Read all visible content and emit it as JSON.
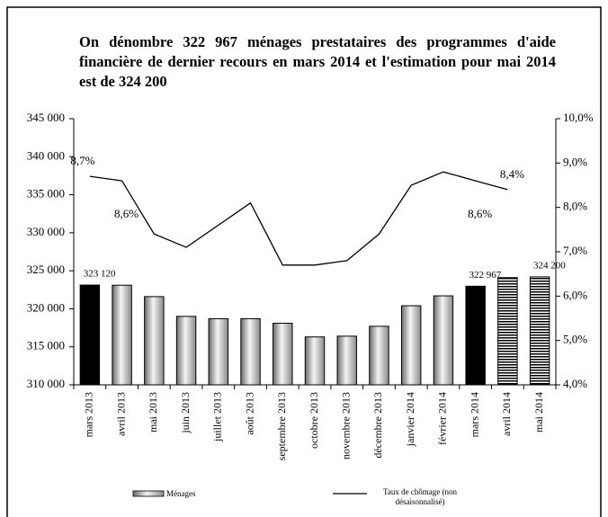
{
  "chart_data": {
    "type": "bar_line",
    "title": "On dénombre 322 967 ménages prestataires des programmes d'aide financière de dernier recours en mars 2014 et l'estimation pour mai 2014 est de 324 200",
    "categories": [
      "mars 2013",
      "avril 2013",
      "mai 2013",
      "juin 2013",
      "juillet 2013",
      "août 2013",
      "septembre 2013",
      "octobre 2013",
      "novembre 2013",
      "décembre 2013",
      "janvier 2014",
      "février 2014",
      "mars 2014",
      "avril 2014",
      "mai 2014"
    ],
    "series": [
      {
        "name": "Ménages",
        "type": "bar",
        "color": "#000000",
        "bar_styles": [
          "solid",
          "gradient",
          "gradient",
          "gradient",
          "gradient",
          "gradient",
          "gradient",
          "gradient",
          "gradient",
          "gradient",
          "gradient",
          "gradient",
          "solid",
          "striped",
          "striped"
        ],
        "values": [
          323120,
          323100,
          321600,
          319000,
          318700,
          318700,
          318100,
          316300,
          316400,
          317700,
          320400,
          321700,
          322967,
          324100,
          324200
        ],
        "value_labels": [
          "323 120",
          null,
          null,
          null,
          null,
          null,
          null,
          null,
          null,
          null,
          null,
          null,
          "322 967",
          null,
          "324 200"
        ]
      },
      {
        "name": "Taux de chômage (non désaisonnalisé)",
        "type": "line",
        "axis": "y2",
        "color": "#000000",
        "values": [
          8.7,
          8.6,
          7.4,
          7.1,
          7.6,
          8.1,
          6.7,
          6.7,
          6.8,
          7.4,
          8.5,
          8.8,
          8.6,
          8.4,
          null
        ],
        "value_labels": [
          "8,7%",
          "8,6%",
          null,
          null,
          null,
          null,
          null,
          null,
          null,
          null,
          null,
          null,
          "8,6%",
          "8,4%",
          null
        ]
      }
    ],
    "ylim": [
      310000,
      345000
    ],
    "yticks": [
      {
        "value": 310000,
        "label": "310 000"
      },
      {
        "value": 315000,
        "label": "315 000"
      },
      {
        "value": 320000,
        "label": "320 000"
      },
      {
        "value": 325000,
        "label": "325 000"
      },
      {
        "value": 330000,
        "label": "330 000"
      },
      {
        "value": 335000,
        "label": "335 000"
      },
      {
        "value": 340000,
        "label": "340 000"
      },
      {
        "value": 345000,
        "label": "345 000"
      }
    ],
    "y2lim": [
      4,
      10
    ],
    "y2ticks": [
      {
        "value": 4,
        "label": "4,0%"
      },
      {
        "value": 5,
        "label": "5,0%"
      },
      {
        "value": 6,
        "label": "6,0%"
      },
      {
        "value": 7,
        "label": "7,0%"
      },
      {
        "value": 8,
        "label": "8,0%"
      },
      {
        "value": 9,
        "label": "9,0%"
      },
      {
        "value": 10,
        "label": "10,0%"
      }
    ],
    "legend": "bottom"
  }
}
